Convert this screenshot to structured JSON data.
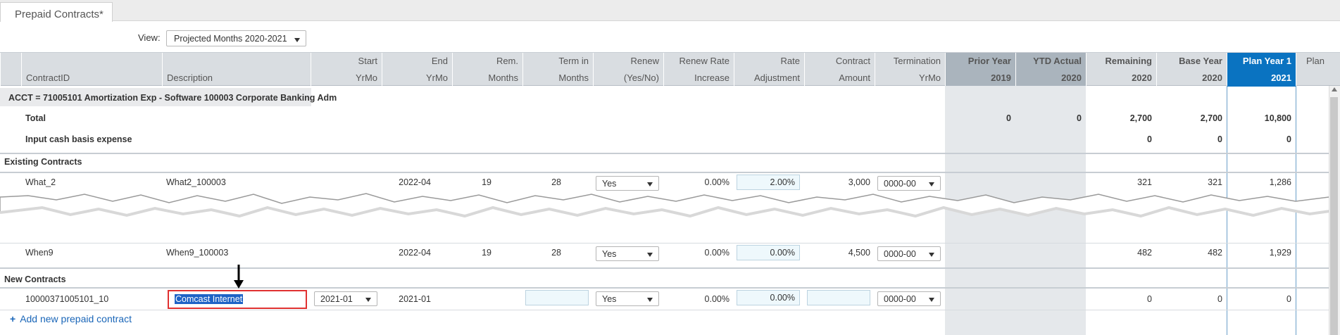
{
  "tab": {
    "label": "Prepaid Contracts*"
  },
  "view": {
    "label": "View:",
    "value": "Projected  Months 2020-2021"
  },
  "columns": [
    {
      "l1": "",
      "l2": "ContractID"
    },
    {
      "l1": "",
      "l2": "Description"
    },
    {
      "l1": "Start",
      "l2": "YrMo"
    },
    {
      "l1": "End",
      "l2": "YrMo"
    },
    {
      "l1": "Rem.",
      "l2": "Months"
    },
    {
      "l1": "Term in",
      "l2": "Months"
    },
    {
      "l1": "Renew",
      "l2": "(Yes/No)"
    },
    {
      "l1": "Renew Rate",
      "l2": "Increase"
    },
    {
      "l1": "Rate",
      "l2": "Adjustment"
    },
    {
      "l1": "Contract",
      "l2": "Amount"
    },
    {
      "l1": "Termination",
      "l2": "YrMo"
    },
    {
      "l1": "Prior Year",
      "l2": "2019"
    },
    {
      "l1": "YTD Actual",
      "l2": "2020"
    },
    {
      "l1": "Remaining",
      "l2": "2020"
    },
    {
      "l1": "Base Year",
      "l2": "2020"
    },
    {
      "l1": "Plan Year 1",
      "l2": "2021"
    },
    {
      "l1": "Plan",
      "l2": ""
    }
  ],
  "acct": "ACCT = 71005101 Amortization Exp - Software 100003 Corporate Banking Adm",
  "total": {
    "label": "Total",
    "prior_year": "0",
    "ytd_actual": "0",
    "remaining": "2,700",
    "base_year": "2,700",
    "plan_year1": "10,800"
  },
  "input_cash": {
    "label": "Input cash basis expense",
    "remaining": "0",
    "base_year": "0",
    "plan_year1": "0"
  },
  "sections": {
    "existing": "Existing Contracts",
    "new": "New Contracts"
  },
  "existing": [
    {
      "id": "What_2",
      "desc": "What2_100003",
      "end": "2022-04",
      "rem": "19",
      "term": "28",
      "renew": "Yes",
      "renew_rate": "0.00%",
      "rate_adj": "2.00%",
      "amount": "3,000",
      "termination": "0000-00",
      "remaining": "321",
      "base_year": "321",
      "plan_year1": "1,286"
    },
    {
      "id": "When9",
      "desc": "When9_100003",
      "end": "2022-04",
      "rem": "19",
      "term": "28",
      "renew": "Yes",
      "renew_rate": "0.00%",
      "rate_adj": "0.00%",
      "amount": "4,500",
      "termination": "0000-00",
      "remaining": "482",
      "base_year": "482",
      "plan_year1": "1,929"
    }
  ],
  "new_row": {
    "id": "10000371005101_10",
    "desc": "Comcast Internet",
    "start": "2021-01",
    "end": "2021-01",
    "renew": "Yes",
    "renew_rate": "0.00%",
    "rate_adj": "0.00%",
    "termination": "0000-00",
    "remaining": "0",
    "base_year": "0",
    "plan_year1": "0"
  },
  "add_link": "Add new prepaid contract",
  "colors": {
    "header_bg": "#d9dde1",
    "grey_header": "#aab4bd",
    "plan_blue": "#0a73c1",
    "highlight_red": "#e03131",
    "link_blue": "#1a66b8"
  }
}
